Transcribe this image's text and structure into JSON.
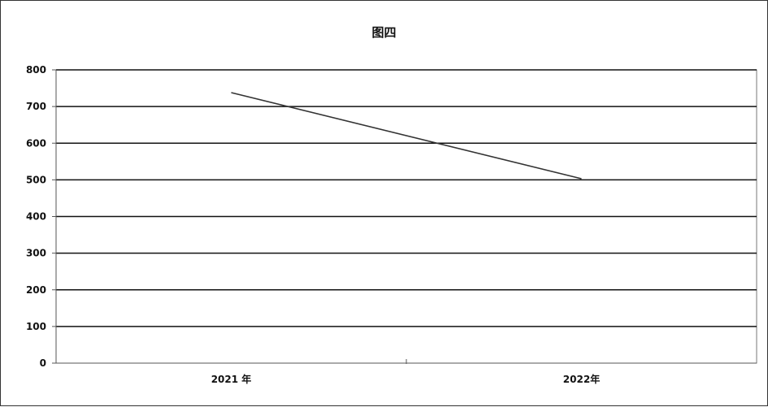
{
  "chart_data": {
    "type": "line",
    "title": "图四",
    "categories": [
      "2021 年",
      "2022年"
    ],
    "series": [
      {
        "values": [
          738,
          503
        ]
      }
    ],
    "ylim": [
      0,
      800
    ],
    "yticks": [
      "0",
      "100",
      "200",
      "300",
      "400",
      "500",
      "600",
      "700",
      "800"
    ],
    "grid": true,
    "legend": "none",
    "colors": {
      "line": "#333333",
      "grid": "#111111",
      "axis": "#555555"
    }
  }
}
